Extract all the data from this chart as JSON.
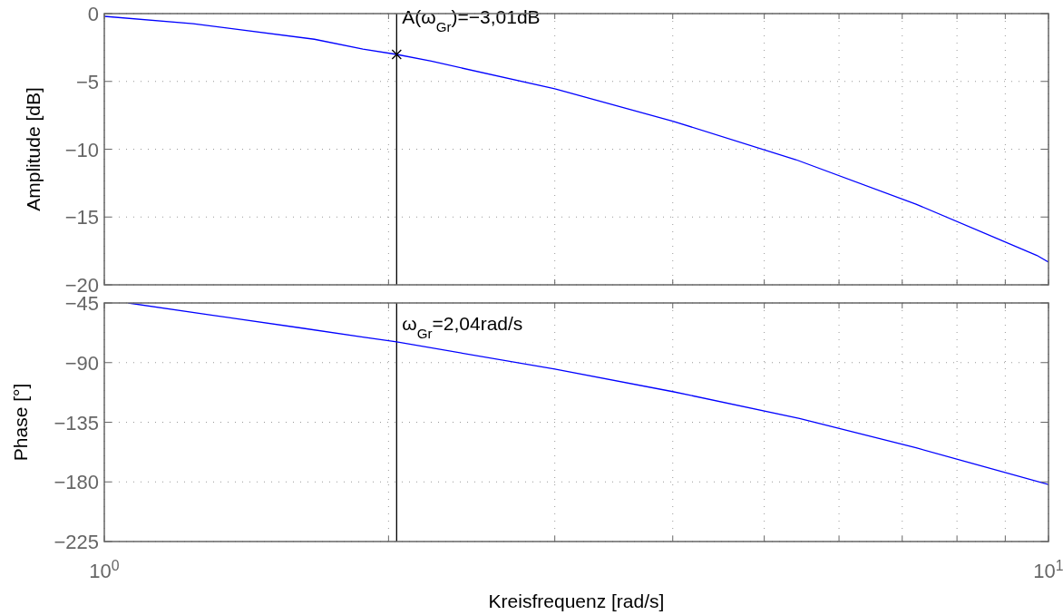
{
  "chart_data": [
    {
      "type": "line",
      "ylabel": "Amplitude  [dB]",
      "log": "x",
      "grid": true,
      "tick_labels": "y",
      "xlim": [
        1,
        10
      ],
      "xticks": [
        {
          "value": 1,
          "label": null
        },
        {
          "value": 2,
          "label": null
        },
        {
          "value": 3,
          "label": null
        },
        {
          "value": 4,
          "label": null
        },
        {
          "value": 5,
          "label": null
        },
        {
          "value": 6,
          "label": null
        },
        {
          "value": 7,
          "label": null
        },
        {
          "value": 8,
          "label": null
        },
        {
          "value": 9,
          "label": null
        },
        {
          "value": 10,
          "label": null
        }
      ],
      "ylim": [
        -20,
        0
      ],
      "yticks": [
        -20,
        -15,
        -10,
        -5,
        0
      ],
      "series": [
        {
          "color": "#0000ff",
          "x": [
            1,
            1.242,
            1.669,
            1.879,
            2.04,
            2.22,
            3.0,
            4.0,
            5.4,
            7.24,
            9.72,
            10
          ],
          "values": [
            -0.2,
            -0.74,
            -1.89,
            -2.61,
            -3.01,
            -3.51,
            -5.55,
            -7.93,
            -10.77,
            -14.05,
            -17.83,
            -18.33
          ]
        },
        {
          "type": "scatter",
          "marker": "cross",
          "color": "#000000",
          "x": [
            2.04
          ],
          "values": [
            -3.01
          ]
        }
      ],
      "ref_lines": [
        {
          "axis": "x",
          "value": 2.04,
          "color": "#000000"
        }
      ],
      "annotations": [
        {
          "text": "A(ω$_{Gr}$)=−3,01dB",
          "x": 2.04,
          "y": -3.01
        }
      ]
    },
    {
      "type": "line",
      "ylabel": "Phase  [°]",
      "xlabel": "Kreisfrequenz  [rad/s]",
      "log": "x",
      "grid": true,
      "xlim": [
        1,
        10
      ],
      "xticks": [
        {
          "value": 1,
          "label": "10$^{0}$"
        },
        {
          "value": 2,
          "label": null
        },
        {
          "value": 3,
          "label": null
        },
        {
          "value": 4,
          "label": null
        },
        {
          "value": 5,
          "label": null
        },
        {
          "value": 6,
          "label": null
        },
        {
          "value": 7,
          "label": null
        },
        {
          "value": 8,
          "label": null
        },
        {
          "value": 9,
          "label": null
        },
        {
          "value": 10,
          "label": "10$^{1}$"
        }
      ],
      "ylim": [
        -225,
        -45
      ],
      "yticks": [
        -225,
        -180,
        -135,
        -90,
        -45
      ],
      "series": [
        {
          "color": "#0000ff",
          "x": [
            1.06,
            1.298,
            1.62,
            1.879,
            2.04,
            3.0,
            4.0,
            5.45,
            7.24,
            10
          ],
          "values": [
            -45,
            -54.1,
            -64.0,
            -70.7,
            -74.4,
            -94.9,
            -111.9,
            -132.1,
            -154.3,
            -182
          ]
        }
      ],
      "ref_lines": [
        {
          "axis": "x",
          "value": 2.04,
          "color": "#000000",
          "label": "ω$_{Gr}$=2,04rad/s"
        }
      ]
    }
  ]
}
